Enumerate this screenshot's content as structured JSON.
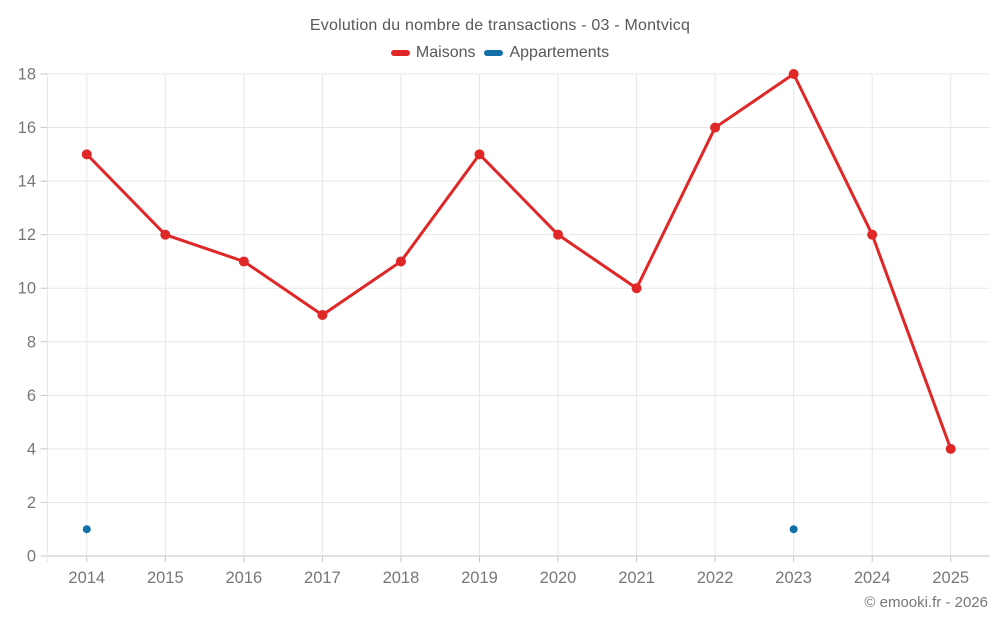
{
  "chart_data": {
    "type": "line",
    "title": "Evolution du nombre de transactions - 03 - Montvicq",
    "categories": [
      "2014",
      "2015",
      "2016",
      "2017",
      "2018",
      "2019",
      "2020",
      "2021",
      "2022",
      "2023",
      "2024",
      "2025"
    ],
    "series": [
      {
        "name": "Maisons",
        "color": "#e02727",
        "values": [
          15,
          12,
          11,
          9,
          11,
          15,
          12,
          10,
          16,
          18,
          12,
          4
        ],
        "point_radius": 5,
        "line_width": 3
      },
      {
        "name": "Appartements",
        "color": "#1270a8",
        "values": [
          1,
          null,
          null,
          null,
          null,
          null,
          null,
          null,
          null,
          1,
          null,
          null
        ],
        "point_radius": 4,
        "line_width": 3
      }
    ],
    "ylim": [
      0,
      18
    ],
    "ytick_step": 2,
    "grid": true,
    "legend_position": "top",
    "xlabel": "",
    "ylabel": ""
  },
  "footer": {
    "copyright": "© emooki.fr - 2026"
  },
  "theme": {
    "grid_color": "#e7e7e7",
    "axis_color": "#c6c6c6",
    "tick_label_color": "#75787b",
    "text_color": "#56585a"
  }
}
